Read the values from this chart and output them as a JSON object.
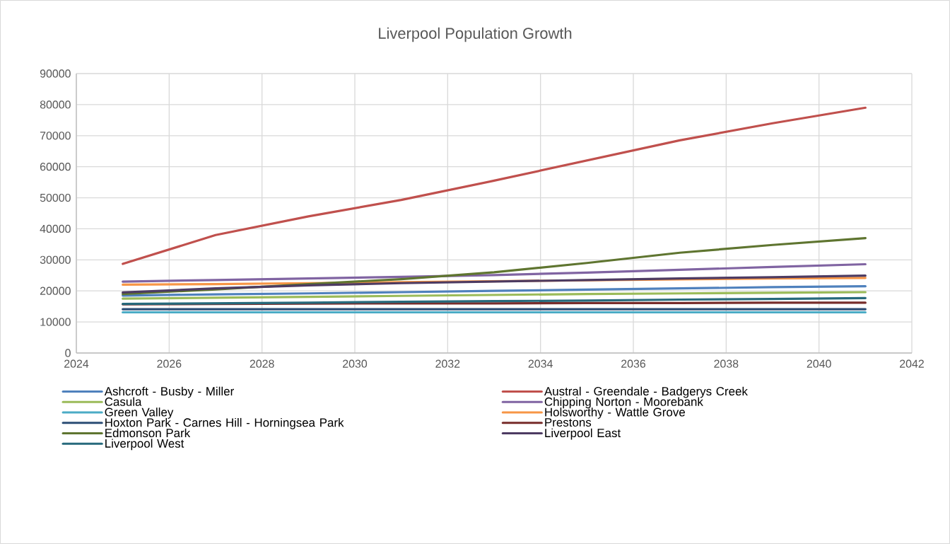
{
  "chart_data": {
    "type": "line",
    "title": "Liverpool Population Growth",
    "x": [
      2025,
      2027,
      2029,
      2031,
      2033,
      2035,
      2037,
      2039,
      2041
    ],
    "series": [
      {
        "name": "Ashcroft - Busby - Miller",
        "color": "#4f81bd",
        "values": [
          18500,
          18900,
          19200,
          19600,
          20000,
          20400,
          20800,
          21200,
          21500
        ]
      },
      {
        "name": "Austral - Greendale - Badgerys Creek",
        "color": "#c0504d",
        "values": [
          28700,
          38000,
          44000,
          49300,
          55500,
          62000,
          68500,
          74000,
          79000
        ]
      },
      {
        "name": "Casula",
        "color": "#9bbb59",
        "values": [
          17500,
          17800,
          18100,
          18400,
          18700,
          19000,
          19200,
          19400,
          19600
        ]
      },
      {
        "name": "Chipping Norton - Moorebank",
        "color": "#8064a2",
        "values": [
          23000,
          23500,
          24000,
          24500,
          25100,
          25900,
          26800,
          27700,
          28600
        ]
      },
      {
        "name": "Green Valley",
        "color": "#4bacc6",
        "values": [
          13100,
          13100,
          13100,
          13100,
          13100,
          13100,
          13100,
          13100,
          13100
        ]
      },
      {
        "name": "Holsworthy - Wattle Grove",
        "color": "#f79646",
        "values": [
          22000,
          22200,
          22500,
          22800,
          23100,
          23400,
          23700,
          24000,
          24200
        ]
      },
      {
        "name": "Hoxton Park - Carnes Hill - Horningsea Park",
        "color": "#2c4d75",
        "values": [
          14100,
          14100,
          14100,
          14100,
          14100,
          14100,
          14100,
          14100,
          14100
        ]
      },
      {
        "name": "Prestons",
        "color": "#772c2a",
        "values": [
          15700,
          15800,
          15900,
          16000,
          16000,
          16100,
          16100,
          16200,
          16200
        ]
      },
      {
        "name": "Edmonson Park",
        "color": "#5f7530",
        "values": [
          19000,
          20500,
          22200,
          23800,
          26000,
          29000,
          32300,
          34800,
          37000
        ]
      },
      {
        "name": "Liverpool East",
        "color": "#4d3b62",
        "values": [
          19500,
          20800,
          21800,
          22500,
          23000,
          23500,
          24000,
          24400,
          24900
        ]
      },
      {
        "name": "Liverpool West",
        "color": "#276a7c",
        "values": [
          15800,
          16000,
          16200,
          16500,
          16700,
          16900,
          17200,
          17400,
          17700
        ]
      }
    ],
    "xlim": [
      2024,
      2042
    ],
    "xticks": [
      2024,
      2026,
      2028,
      2030,
      2032,
      2034,
      2036,
      2038,
      2040,
      2042
    ],
    "ylim": [
      0,
      90000
    ],
    "yticks": [
      0,
      10000,
      20000,
      30000,
      40000,
      50000,
      60000,
      70000,
      80000,
      90000
    ],
    "grid": true,
    "legend": "bottom",
    "marker": "none",
    "line_style": "solid"
  }
}
